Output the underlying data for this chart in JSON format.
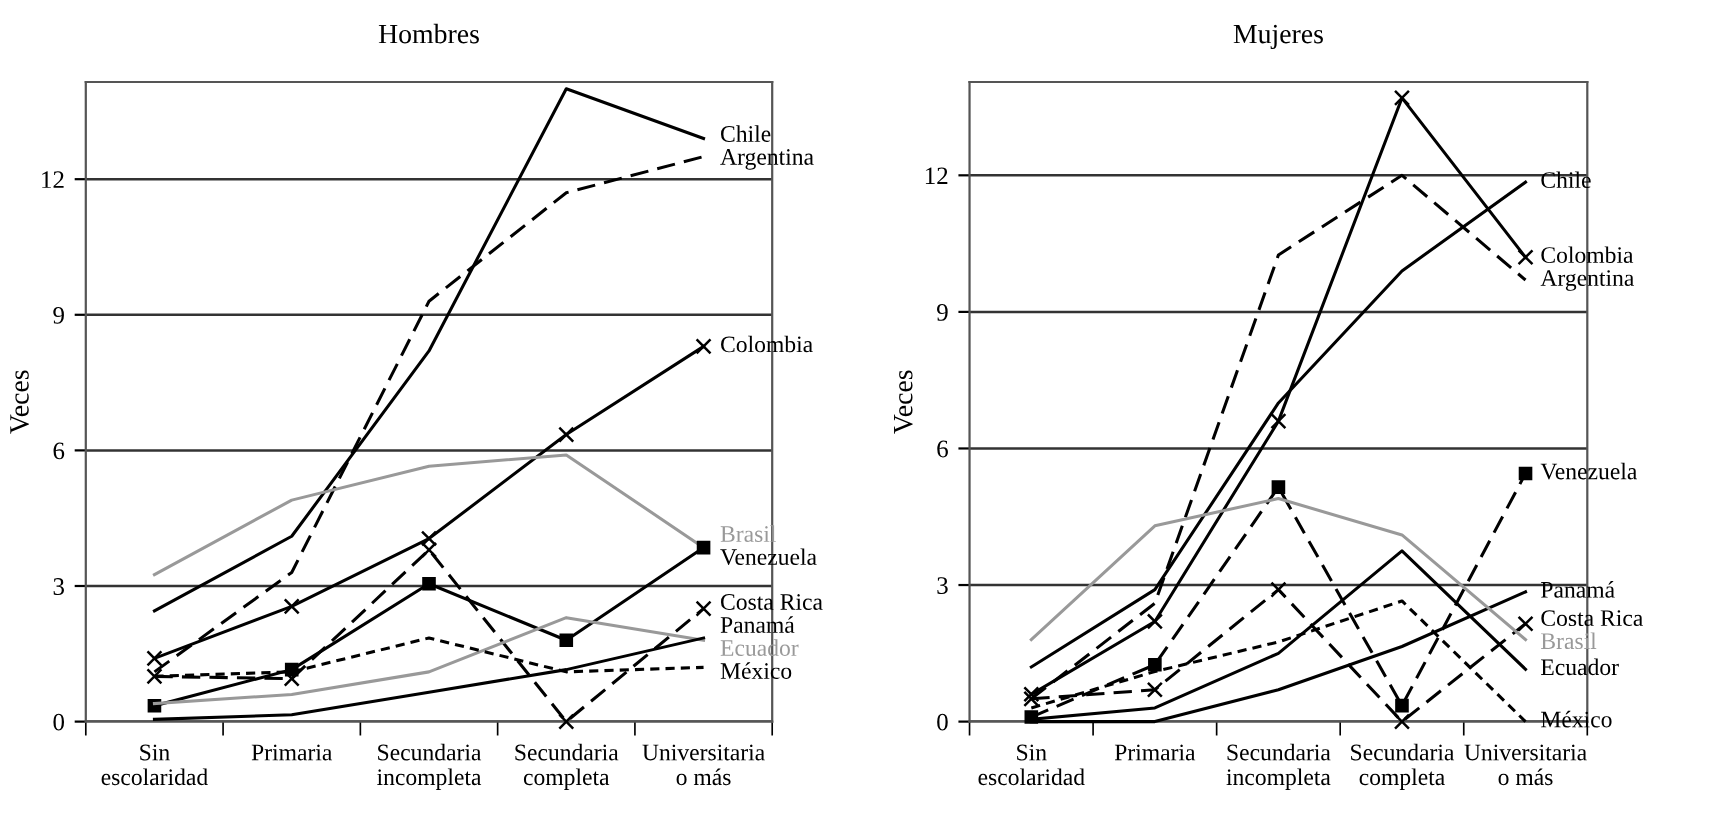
{
  "chart_data": [
    {
      "type": "line",
      "title": "Hombres",
      "ylabel": "Veces",
      "categories": [
        "Sin\nescolaridad",
        "Primaria",
        "Secundaria\nincompleta",
        "Secundaria\ncompleta",
        "Universitaria\no más"
      ],
      "ylim": [
        0,
        14.15
      ],
      "yticks": [
        0,
        3,
        6,
        9,
        12
      ],
      "grid": "y",
      "series": [
        {
          "name": "Chile",
          "color": "#000000",
          "line_style": "solid",
          "marker": "none",
          "values": [
            2.45,
            4.1,
            8.2,
            14.0,
            12.9
          ]
        },
        {
          "name": "Argentina",
          "color": "#000000",
          "line_style": "dashed",
          "marker": "none",
          "values": [
            1.1,
            3.3,
            9.3,
            11.7,
            12.5
          ]
        },
        {
          "name": "Colombia",
          "color": "#000000",
          "line_style": "solid",
          "marker": "cross",
          "values": [
            1.4,
            2.55,
            4.05,
            6.35,
            8.3
          ]
        },
        {
          "name": "Brasil",
          "color": "#999999",
          "line_style": "solid",
          "marker": "none",
          "values": [
            3.25,
            4.9,
            5.65,
            5.9,
            3.85
          ]
        },
        {
          "name": "Venezuela",
          "color": "#000000",
          "line_style": "solid",
          "marker": "square",
          "values": [
            0.35,
            1.15,
            3.05,
            1.8,
            3.85
          ]
        },
        {
          "name": "Costa Rica",
          "color": "#000000",
          "line_style": "dashed",
          "marker": "cross",
          "values": [
            1.0,
            0.95,
            3.8,
            0.0,
            2.5
          ]
        },
        {
          "name": "Ecuador",
          "color": "#999999",
          "line_style": "solid",
          "marker": "none",
          "values": [
            0.4,
            0.6,
            1.1,
            2.3,
            1.8
          ]
        },
        {
          "name": "Panamá",
          "color": "#000000",
          "line_style": "solid",
          "marker": "none",
          "values": [
            0.05,
            0.15,
            0.65,
            1.15,
            1.85
          ]
        },
        {
          "name": "México",
          "color": "#000000",
          "line_style": "dotted",
          "marker": "none",
          "values": [
            1.0,
            1.1,
            1.85,
            1.1,
            1.2
          ]
        }
      ]
    },
    {
      "type": "line",
      "title": "Mujeres",
      "ylabel": "Veces",
      "categories": [
        "Sin\nescolaridad",
        "Primaria",
        "Secundaria\nincompleta",
        "Secundaria\ncompleta",
        "Universitaria\no más"
      ],
      "ylim": [
        0,
        14.05
      ],
      "yticks": [
        0,
        3,
        6,
        9,
        12
      ],
      "grid": "y",
      "series": [
        {
          "name": "Chile",
          "color": "#000000",
          "line_style": "solid",
          "marker": "none",
          "values": [
            1.2,
            2.9,
            7.0,
            9.9,
            11.85
          ]
        },
        {
          "name": "Colombia",
          "color": "#000000",
          "line_style": "solid",
          "marker": "cross",
          "values": [
            0.6,
            2.2,
            6.6,
            13.7,
            10.2
          ]
        },
        {
          "name": "Argentina",
          "color": "#000000",
          "line_style": "dashed",
          "marker": "none",
          "values": [
            0.5,
            2.6,
            10.25,
            12.0,
            9.7
          ]
        },
        {
          "name": "Venezuela",
          "color": "#000000",
          "line_style": "dashed",
          "marker": "square",
          "values": [
            0.1,
            1.25,
            5.15,
            0.35,
            5.45
          ]
        },
        {
          "name": "Panamá",
          "color": "#000000",
          "line_style": "solid",
          "marker": "none",
          "values": [
            0.0,
            0.0,
            0.7,
            1.65,
            2.85
          ]
        },
        {
          "name": "Costa Rica",
          "color": "#000000",
          "line_style": "dashed",
          "marker": "cross",
          "values": [
            0.5,
            0.7,
            2.9,
            0.0,
            2.15
          ]
        },
        {
          "name": "Brasil",
          "color": "#999999",
          "line_style": "solid",
          "marker": "none",
          "values": [
            1.8,
            4.3,
            4.9,
            4.1,
            1.8
          ]
        },
        {
          "name": "Ecuador",
          "color": "#000000",
          "line_style": "solid",
          "marker": "none",
          "values": [
            0.05,
            0.3,
            1.5,
            3.75,
            1.15
          ]
        },
        {
          "name": "México",
          "color": "#000000",
          "line_style": "dotted",
          "marker": "none",
          "values": [
            0.3,
            1.1,
            1.75,
            2.65,
            0.0
          ]
        }
      ]
    }
  ]
}
